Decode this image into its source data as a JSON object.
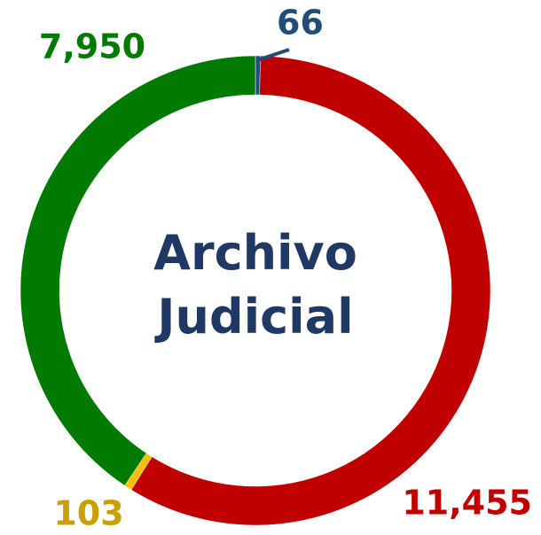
{
  "chart_data": {
    "type": "donut",
    "title": "Archivo Judicial",
    "values": [
      66,
      11455,
      103,
      7950
    ],
    "value_labels": [
      "66",
      "11,455",
      "103",
      "7,950"
    ],
    "colors": [
      "#1f4e79",
      "#c00000",
      "#f5c000",
      "#007a00"
    ],
    "label_colors": [
      "#1f4e79",
      "#c00000",
      "#c9a000",
      "#007a00"
    ]
  }
}
